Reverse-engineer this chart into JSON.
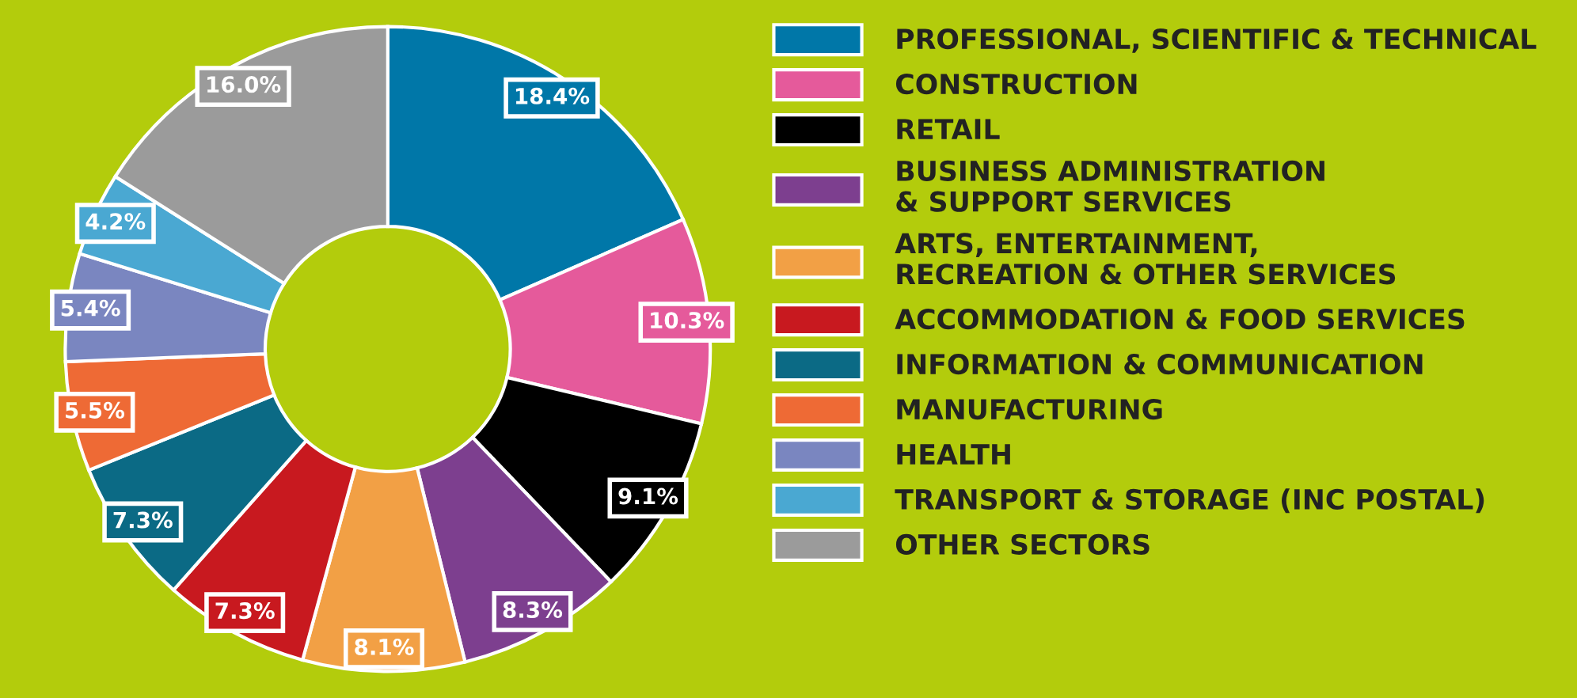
{
  "chart_data": {
    "type": "donut",
    "categories": [
      "PROFESSIONAL, SCIENTIFIC & TECHNICAL",
      "CONSTRUCTION",
      "RETAIL",
      "BUSINESS ADMINISTRATION\n& SUPPORT SERVICES",
      "ARTS, ENTERTAINMENT,\nRECREATION & OTHER SERVICES",
      "ACCOMMODATION & FOOD SERVICES",
      "INFORMATION & COMMUNICATION",
      "MANUFACTURING",
      "HEALTH",
      "TRANSPORT & STORAGE (INC POSTAL)",
      "OTHER SECTORS"
    ],
    "values": [
      18.4,
      10.3,
      9.1,
      8.3,
      8.1,
      7.3,
      7.3,
      5.5,
      5.4,
      4.2,
      16.0
    ],
    "colors": [
      "#0077a8",
      "#e55a9b",
      "#000000",
      "#7d3f8f",
      "#f2a045",
      "#c8191f",
      "#0b6a85",
      "#ee6a35",
      "#7a86c0",
      "#4aa8d2",
      "#9b9b9b"
    ],
    "value_labels": [
      "18.4%",
      "10.3%",
      "9.1%",
      "8.3%",
      "8.1%",
      "7.3%",
      "7.3%",
      "5.5%",
      "5.4%",
      "4.2%",
      "16.0%"
    ],
    "legend": "right"
  }
}
